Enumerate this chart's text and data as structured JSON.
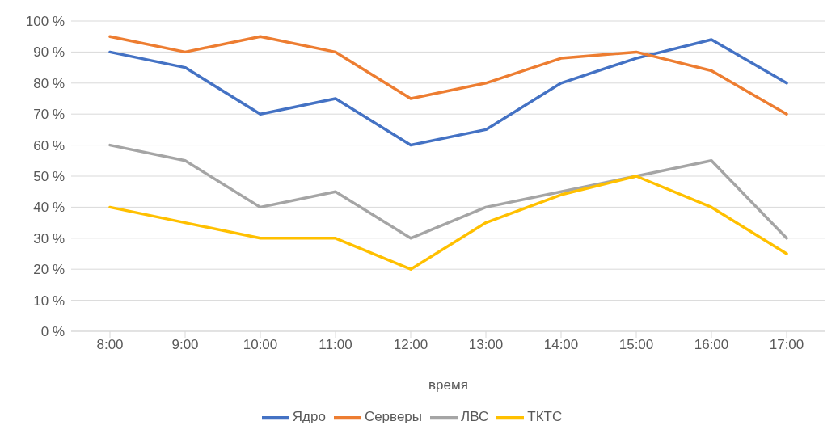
{
  "chart_data": {
    "type": "line",
    "xlabel": "время",
    "categories": [
      "8:00",
      "9:00",
      "10:00",
      "11:00",
      "12:00",
      "13:00",
      "14:00",
      "15:00",
      "16:00",
      "17:00"
    ],
    "series": [
      {
        "name": "Ядро",
        "color": "#4472c4",
        "values": [
          90,
          85,
          70,
          75,
          60,
          65,
          80,
          88,
          94,
          80
        ]
      },
      {
        "name": "Серверы",
        "color": "#ed7d31",
        "values": [
          95,
          90,
          95,
          90,
          75,
          80,
          88,
          90,
          84,
          70
        ]
      },
      {
        "name": "ЛВС",
        "color": "#a5a5a5",
        "values": [
          60,
          55,
          40,
          45,
          30,
          40,
          45,
          50,
          55,
          30
        ]
      },
      {
        "name": "ТКТС",
        "color": "#ffc000",
        "values": [
          40,
          35,
          30,
          30,
          20,
          35,
          44,
          50,
          40,
          25
        ]
      }
    ],
    "ylim": [
      0,
      100
    ],
    "yticks": [
      {
        "value": 0,
        "label": "0 %"
      },
      {
        "value": 10,
        "label": "10 %"
      },
      {
        "value": 20,
        "label": "20 %"
      },
      {
        "value": 30,
        "label": "30 %"
      },
      {
        "value": 40,
        "label": "40 %"
      },
      {
        "value": 50,
        "label": "50 %"
      },
      {
        "value": 60,
        "label": "60 %"
      },
      {
        "value": 70,
        "label": "70 %"
      },
      {
        "value": 80,
        "label": "80 %"
      },
      {
        "value": 90,
        "label": "90 %"
      },
      {
        "value": 100,
        "label": "100 %"
      }
    ],
    "grid": "y",
    "legend": "bottom"
  }
}
